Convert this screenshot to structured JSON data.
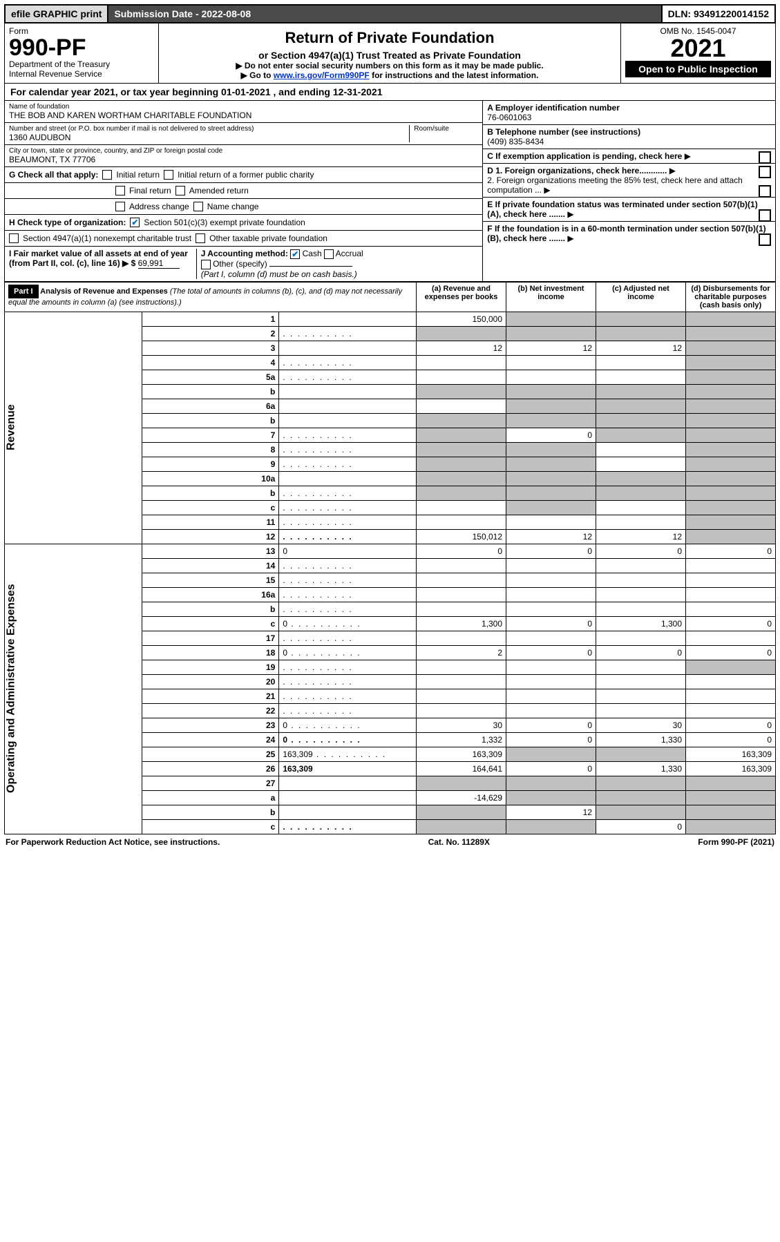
{
  "top": {
    "efile": "efile GRAPHIC print",
    "submission": "Submission Date - 2022-08-08",
    "dln": "DLN: 93491220014152"
  },
  "header": {
    "form_word": "Form",
    "form_number": "990-PF",
    "dept": "Department of the Treasury",
    "irs": "Internal Revenue Service",
    "title": "Return of Private Foundation",
    "subtitle": "or Section 4947(a)(1) Trust Treated as Private Foundation",
    "note1": "▶ Do not enter social security numbers on this form as it may be made public.",
    "note2_pre": "▶ Go to ",
    "note2_link": "www.irs.gov/Form990PF",
    "note2_post": " for instructions and the latest information.",
    "omb": "OMB No. 1545-0047",
    "year": "2021",
    "open": "Open to Public Inspection"
  },
  "cal": {
    "prefix": "For calendar year 2021, or tax year beginning ",
    "begin": "01-01-2021",
    "mid": " , and ending ",
    "end": "12-31-2021"
  },
  "entity": {
    "name_label": "Name of foundation",
    "name": "THE BOB AND KAREN WORTHAM CHARITABLE FOUNDATION",
    "addr_label": "Number and street (or P.O. box number if mail is not delivered to street address)",
    "addr": "1360 AUDUBON",
    "room_label": "Room/suite",
    "city_label": "City or town, state or province, country, and ZIP or foreign postal code",
    "city": "BEAUMONT, TX  77706",
    "a_label": "A Employer identification number",
    "ein": "76-0601063",
    "b_label": "B Telephone number (see instructions)",
    "phone": "(409) 835-8434",
    "c_label": "C If exemption application is pending, check here",
    "d1": "D 1. Foreign organizations, check here............",
    "d2": "2. Foreign organizations meeting the 85% test, check here and attach computation ...",
    "e_label": "E  If private foundation status was terminated under section 507(b)(1)(A), check here .......",
    "f_label": "F  If the foundation is in a 60-month termination under section 507(b)(1)(B), check here .......",
    "g_label": "G Check all that apply:",
    "g_initial": "Initial return",
    "g_initial_former": "Initial return of a former public charity",
    "g_final": "Final return",
    "g_amended": "Amended return",
    "g_address": "Address change",
    "g_name": "Name change",
    "h_label": "H Check type of organization:",
    "h_501c3": "Section 501(c)(3) exempt private foundation",
    "h_4947": "Section 4947(a)(1) nonexempt charitable trust",
    "h_other": "Other taxable private foundation",
    "i_label": "I Fair market value of all assets at end of year (from Part II, col. (c), line 16) ▶ $",
    "i_value": "69,991",
    "j_label": "J Accounting method:",
    "j_cash": "Cash",
    "j_accrual": "Accrual",
    "j_other": "Other (specify)",
    "j_note": "(Part I, column (d) must be on cash basis.)"
  },
  "part1": {
    "label": "Part I",
    "title": "Analysis of Revenue and Expenses",
    "note": " (The total of amounts in columns (b), (c), and (d) may not necessarily equal the amounts in column (a) (see instructions).)",
    "col_a": "(a)   Revenue and expenses per books",
    "col_b": "(b)  Net investment income",
    "col_c": "(c)  Adjusted net income",
    "col_d": "(d)  Disbursements for charitable purposes (cash basis only)",
    "side_revenue": "Revenue",
    "side_expenses": "Operating and Administrative Expenses"
  },
  "rows": [
    {
      "n": "1",
      "d": "",
      "a": "150,000",
      "b": "",
      "c": "",
      "shade": [
        "b",
        "c",
        "d"
      ]
    },
    {
      "n": "2",
      "d": "",
      "a": "",
      "b": "",
      "c": "",
      "shade": [
        "a",
        "b",
        "c",
        "d"
      ],
      "dots": true
    },
    {
      "n": "3",
      "d": "",
      "a": "12",
      "b": "12",
      "c": "12",
      "shade": [
        "d"
      ]
    },
    {
      "n": "4",
      "d": "",
      "a": "",
      "b": "",
      "c": "",
      "shade": [
        "d"
      ],
      "dots": true
    },
    {
      "n": "5a",
      "d": "",
      "a": "",
      "b": "",
      "c": "",
      "shade": [
        "d"
      ],
      "dots": true
    },
    {
      "n": "b",
      "d": "",
      "a": "",
      "b": "",
      "c": "",
      "shade": [
        "a",
        "b",
        "c",
        "d"
      ]
    },
    {
      "n": "6a",
      "d": "",
      "a": "",
      "b": "",
      "c": "",
      "shade": [
        "b",
        "c",
        "d"
      ]
    },
    {
      "n": "b",
      "d": "",
      "a": "",
      "b": "",
      "c": "",
      "shade": [
        "a",
        "b",
        "c",
        "d"
      ]
    },
    {
      "n": "7",
      "d": "",
      "a": "",
      "b": "0",
      "c": "",
      "shade": [
        "a",
        "c",
        "d"
      ],
      "dots": true
    },
    {
      "n": "8",
      "d": "",
      "a": "",
      "b": "",
      "c": "",
      "shade": [
        "a",
        "b",
        "d"
      ],
      "dots": true
    },
    {
      "n": "9",
      "d": "",
      "a": "",
      "b": "",
      "c": "",
      "shade": [
        "a",
        "b",
        "d"
      ],
      "dots": true
    },
    {
      "n": "10a",
      "d": "",
      "a": "",
      "b": "",
      "c": "",
      "shade": [
        "a",
        "b",
        "c",
        "d"
      ]
    },
    {
      "n": "b",
      "d": "",
      "a": "",
      "b": "",
      "c": "",
      "shade": [
        "a",
        "b",
        "c",
        "d"
      ],
      "dots": true
    },
    {
      "n": "c",
      "d": "",
      "a": "",
      "b": "",
      "c": "",
      "shade": [
        "b",
        "d"
      ],
      "dots": true
    },
    {
      "n": "11",
      "d": "",
      "a": "",
      "b": "",
      "c": "",
      "shade": [
        "d"
      ],
      "dots": true
    },
    {
      "n": "12",
      "d": "",
      "a": "150,012",
      "b": "12",
      "c": "12",
      "shade": [
        "d"
      ],
      "bold": true,
      "dots": true
    },
    {
      "n": "13",
      "d": "0",
      "a": "0",
      "b": "0",
      "c": "0"
    },
    {
      "n": "14",
      "d": "",
      "a": "",
      "b": "",
      "c": "",
      "dots": true
    },
    {
      "n": "15",
      "d": "",
      "a": "",
      "b": "",
      "c": "",
      "dots": true
    },
    {
      "n": "16a",
      "d": "",
      "a": "",
      "b": "",
      "c": "",
      "dots": true
    },
    {
      "n": "b",
      "d": "",
      "a": "",
      "b": "",
      "c": "",
      "dots": true
    },
    {
      "n": "c",
      "d": "0",
      "a": "1,300",
      "b": "0",
      "c": "1,300",
      "dots": true
    },
    {
      "n": "17",
      "d": "",
      "a": "",
      "b": "",
      "c": "",
      "dots": true
    },
    {
      "n": "18",
      "d": "0",
      "a": "2",
      "b": "0",
      "c": "0",
      "dots": true
    },
    {
      "n": "19",
      "d": "",
      "a": "",
      "b": "",
      "c": "",
      "shade": [
        "d"
      ],
      "dots": true
    },
    {
      "n": "20",
      "d": "",
      "a": "",
      "b": "",
      "c": "",
      "dots": true
    },
    {
      "n": "21",
      "d": "",
      "a": "",
      "b": "",
      "c": "",
      "dots": true
    },
    {
      "n": "22",
      "d": "",
      "a": "",
      "b": "",
      "c": "",
      "dots": true
    },
    {
      "n": "23",
      "d": "0",
      "a": "30",
      "b": "0",
      "c": "30",
      "dots": true
    },
    {
      "n": "24",
      "d": "0",
      "a": "1,332",
      "b": "0",
      "c": "1,330",
      "bold": true,
      "dots": true
    },
    {
      "n": "25",
      "d": "163,309",
      "a": "163,309",
      "b": "",
      "c": "",
      "shade": [
        "b",
        "c"
      ],
      "dots": true
    },
    {
      "n": "26",
      "d": "163,309",
      "a": "164,641",
      "b": "0",
      "c": "1,330",
      "bold": true
    },
    {
      "n": "27",
      "d": "",
      "a": "",
      "b": "",
      "c": "",
      "shade": [
        "a",
        "b",
        "c",
        "d"
      ]
    },
    {
      "n": "a",
      "d": "",
      "a": "-14,629",
      "b": "",
      "c": "",
      "shade": [
        "b",
        "c",
        "d"
      ],
      "bold": true
    },
    {
      "n": "b",
      "d": "",
      "a": "",
      "b": "12",
      "c": "",
      "shade": [
        "a",
        "c",
        "d"
      ],
      "bold": true
    },
    {
      "n": "c",
      "d": "",
      "a": "",
      "b": "",
      "c": "0",
      "shade": [
        "a",
        "b",
        "d"
      ],
      "bold": true,
      "dots": true
    }
  ],
  "footer": {
    "left": "For Paperwork Reduction Act Notice, see instructions.",
    "mid": "Cat. No. 11289X",
    "right": "Form 990-PF (2021)"
  }
}
